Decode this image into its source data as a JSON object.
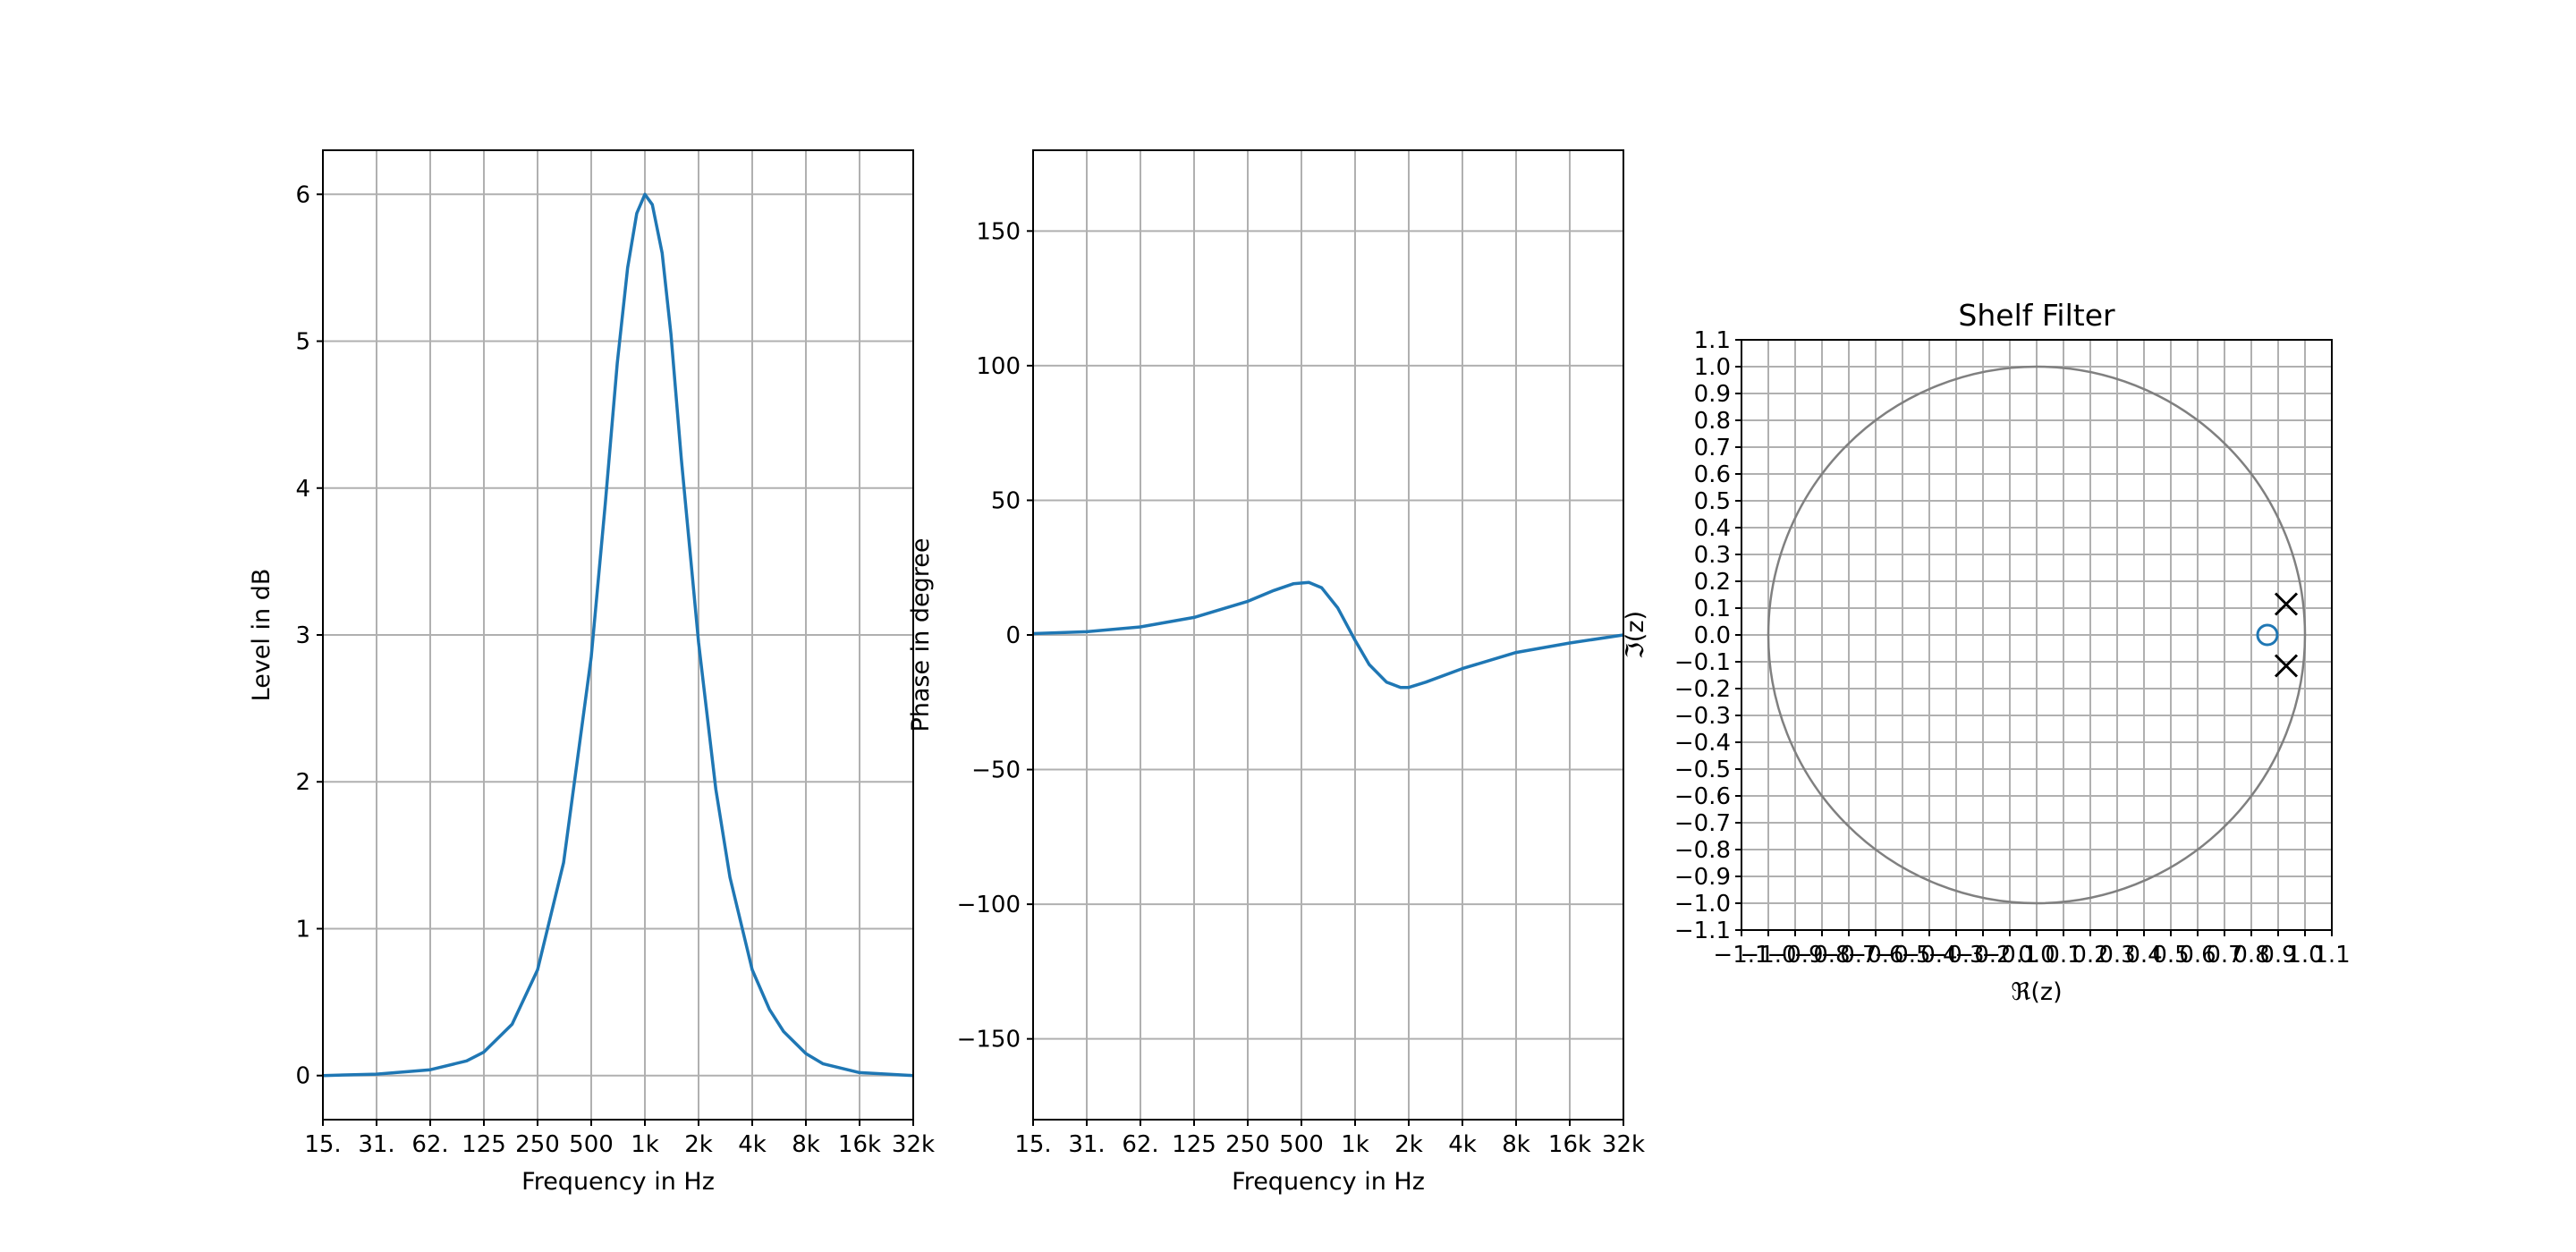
{
  "chart_data": [
    {
      "type": "line",
      "xlabel": "Frequency in Hz",
      "ylabel": "Level in dB",
      "xscale": "log",
      "xlim": [
        15.625,
        32000
      ],
      "ylim": [
        -0.3,
        6.3
      ],
      "grid": true,
      "x_ticks": [
        15.625,
        31.25,
        62.5,
        125,
        250,
        500,
        1000,
        2000,
        4000,
        8000,
        16000,
        32000
      ],
      "x_tick_labels": [
        "15.",
        "31.",
        "62.",
        "125",
        "250",
        "500",
        "1k",
        "2k",
        "4k",
        "8k",
        "16k",
        "32k"
      ],
      "y_ticks": [
        0,
        1,
        2,
        3,
        4,
        5,
        6
      ],
      "y_tick_labels": [
        "0",
        "1",
        "2",
        "3",
        "4",
        "5",
        "6"
      ],
      "series": [
        {
          "color": "#1f77b4",
          "points": [
            [
              15.625,
              0.0
            ],
            [
              31.25,
              0.01
            ],
            [
              62.5,
              0.04
            ],
            [
              100,
              0.1
            ],
            [
              125,
              0.16
            ],
            [
              180,
              0.35
            ],
            [
              250,
              0.72
            ],
            [
              350,
              1.45
            ],
            [
              500,
              2.85
            ],
            [
              600,
              3.9
            ],
            [
              700,
              4.85
            ],
            [
              800,
              5.5
            ],
            [
              900,
              5.87
            ],
            [
              1000,
              6.0
            ],
            [
              1100,
              5.93
            ],
            [
              1250,
              5.6
            ],
            [
              1400,
              5.05
            ],
            [
              1600,
              4.2
            ],
            [
              2000,
              2.95
            ],
            [
              2500,
              1.95
            ],
            [
              3000,
              1.35
            ],
            [
              4000,
              0.72
            ],
            [
              5000,
              0.45
            ],
            [
              6000,
              0.3
            ],
            [
              8000,
              0.15
            ],
            [
              10000,
              0.08
            ],
            [
              16000,
              0.02
            ],
            [
              32000,
              0.0
            ]
          ]
        }
      ]
    },
    {
      "type": "line",
      "xlabel": "Frequency in Hz",
      "ylabel": "Phase in degree",
      "xscale": "log",
      "xlim": [
        15.625,
        32000
      ],
      "ylim": [
        -180,
        180
      ],
      "grid": true,
      "x_ticks": [
        15.625,
        31.25,
        62.5,
        125,
        250,
        500,
        1000,
        2000,
        4000,
        8000,
        16000,
        32000
      ],
      "x_tick_labels": [
        "15.",
        "31.",
        "62.",
        "125",
        "250",
        "500",
        "1k",
        "2k",
        "4k",
        "8k",
        "16k",
        "32k"
      ],
      "y_ticks": [
        -150,
        -100,
        -50,
        0,
        50,
        100,
        150
      ],
      "y_tick_labels": [
        "−150",
        "−100",
        "−50",
        "0",
        "50",
        "100",
        "150"
      ],
      "series": [
        {
          "color": "#1f77b4",
          "points": [
            [
              15.625,
              0.5
            ],
            [
              31.25,
              1.2
            ],
            [
              62.5,
              3.0
            ],
            [
              125,
              6.5
            ],
            [
              250,
              12.5
            ],
            [
              350,
              16.5
            ],
            [
              450,
              19.0
            ],
            [
              550,
              19.5
            ],
            [
              650,
              17.5
            ],
            [
              800,
              10.0
            ],
            [
              1000,
              -2.0
            ],
            [
              1200,
              -11.0
            ],
            [
              1500,
              -17.5
            ],
            [
              1800,
              -19.5
            ],
            [
              2000,
              -19.5
            ],
            [
              2500,
              -17.5
            ],
            [
              4000,
              -12.5
            ],
            [
              8000,
              -6.5
            ],
            [
              16000,
              -3.0
            ],
            [
              32000,
              0.0
            ]
          ]
        }
      ]
    },
    {
      "type": "scatter",
      "title": "Shelf Filter",
      "xlabel": "ℜ(z)",
      "ylabel": "ℑ(z)",
      "xlim": [
        -1.1,
        1.1
      ],
      "ylim": [
        -1.1,
        1.1
      ],
      "grid": true,
      "ticks": [
        -1.1,
        -1.0,
        -0.9,
        -0.8,
        -0.7,
        -0.6,
        -0.5,
        -0.4,
        -0.3,
        -0.2,
        -0.1,
        0.0,
        0.1,
        0.2,
        0.3,
        0.4,
        0.5,
        0.6,
        0.7,
        0.8,
        0.9,
        1.0,
        1.1
      ],
      "tick_labels": [
        "−1.1",
        "−1.0",
        "−0.9",
        "−0.8",
        "−0.7",
        "−0.6",
        "−0.5",
        "−0.4",
        "−0.3",
        "−0.2",
        "−0.1",
        "0.0",
        "0.1",
        "0.2",
        "0.3",
        "0.4",
        "0.5",
        "0.6",
        "0.7",
        "0.8",
        "0.9",
        "1.0",
        "1.1"
      ],
      "unit_circle": {
        "radius": 1.0,
        "color": "#808080"
      },
      "zeros": {
        "marker": "o",
        "color": "#1f77b4",
        "points": [
          [
            0.86,
            0.0
          ]
        ]
      },
      "poles": {
        "marker": "x",
        "color": "#000000",
        "points": [
          [
            0.93,
            0.115
          ],
          [
            0.93,
            -0.115
          ]
        ]
      }
    }
  ]
}
